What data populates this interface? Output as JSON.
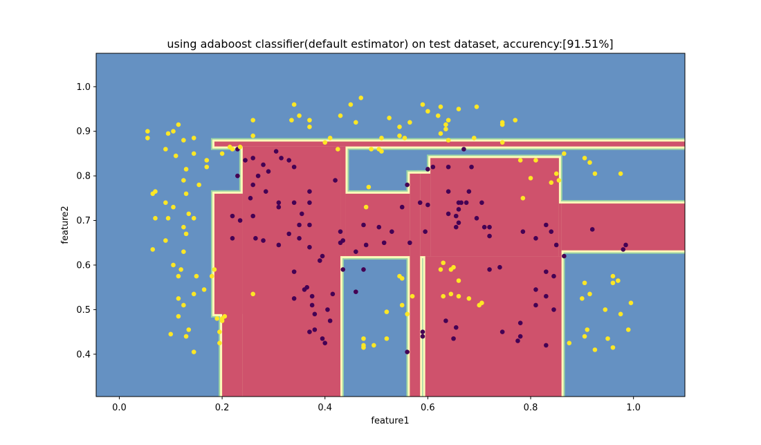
{
  "chart_data": {
    "type": "scatter",
    "title": "using adaboost classifier(default estimator) on test dataset, accurency:[91.51%]",
    "xlabel": "feature1",
    "ylabel": "feature2",
    "xlim": [
      -0.045,
      1.1
    ],
    "ylim": [
      0.305,
      1.075
    ],
    "xticks": [
      0.0,
      0.2,
      0.4,
      0.6,
      0.8,
      1.0
    ],
    "xtick_labels": [
      "0.0",
      "0.2",
      "0.4",
      "0.6",
      "0.8",
      "1.0"
    ],
    "yticks": [
      0.4,
      0.5,
      0.6,
      0.7,
      0.8,
      0.9,
      1.0
    ],
    "ytick_labels": [
      "0.4",
      "0.5",
      "0.6",
      "0.7",
      "0.8",
      "0.9",
      "1.0"
    ],
    "grid": false,
    "colors": {
      "background_region": "#6591c2",
      "predicted_region": "#cf526c",
      "boundary_outer": "#fdfab9",
      "boundary_inner": "#9ad3a4",
      "class_0_point": "#440154",
      "class_1_point": "#fde725"
    },
    "decision_regions": [
      {
        "x": [
          0.185,
          1.1
        ],
        "y": [
          0.866,
          0.877
        ]
      },
      {
        "x": [
          0.2,
          0.24
        ],
        "y": [
          0.305,
          0.76
        ]
      },
      {
        "x": [
          0.185,
          0.24
        ],
        "y": [
          0.49,
          0.76
        ]
      },
      {
        "x": [
          0.24,
          0.43
        ],
        "y": [
          0.305,
          0.866
        ]
      },
      {
        "x": [
          0.43,
          0.44
        ],
        "y": [
          0.62,
          0.866
        ]
      },
      {
        "x": [
          0.44,
          0.565
        ],
        "y": [
          0.62,
          0.76
        ]
      },
      {
        "x": [
          0.565,
          0.585
        ],
        "y": [
          0.305,
          0.805
        ]
      },
      {
        "x": [
          0.585,
          0.605
        ],
        "y": [
          0.62,
          0.805
        ]
      },
      {
        "x": [
          0.605,
          0.855
        ],
        "y": [
          0.62,
          0.84
        ]
      },
      {
        "x": [
          0.595,
          0.86
        ],
        "y": [
          0.305,
          0.62
        ]
      },
      {
        "x": [
          0.855,
          0.86
        ],
        "y": [
          0.62,
          0.738
        ]
      },
      {
        "x": [
          0.86,
          1.1
        ],
        "y": [
          0.633,
          0.738
        ]
      }
    ],
    "series": [
      {
        "points": [
          [
            0.23,
            0.86
          ],
          [
            0.26,
            0.84
          ],
          [
            0.305,
            0.855
          ],
          [
            0.315,
            0.84
          ],
          [
            0.33,
            0.835
          ],
          [
            0.245,
            0.835
          ],
          [
            0.28,
            0.825
          ],
          [
            0.34,
            0.82
          ],
          [
            0.23,
            0.8
          ],
          [
            0.27,
            0.8
          ],
          [
            0.29,
            0.81
          ],
          [
            0.42,
            0.79
          ],
          [
            0.26,
            0.78
          ],
          [
            0.37,
            0.765
          ],
          [
            0.285,
            0.765
          ],
          [
            0.255,
            0.75
          ],
          [
            0.37,
            0.74
          ],
          [
            0.31,
            0.74
          ],
          [
            0.34,
            0.74
          ],
          [
            0.31,
            0.73
          ],
          [
            0.22,
            0.71
          ],
          [
            0.235,
            0.7
          ],
          [
            0.26,
            0.71
          ],
          [
            0.355,
            0.715
          ],
          [
            0.37,
            0.69
          ],
          [
            0.35,
            0.69
          ],
          [
            0.33,
            0.67
          ],
          [
            0.265,
            0.66
          ],
          [
            0.28,
            0.655
          ],
          [
            0.31,
            0.645
          ],
          [
            0.22,
            0.66
          ],
          [
            0.35,
            0.66
          ],
          [
            0.37,
            0.64
          ],
          [
            0.39,
            0.61
          ],
          [
            0.395,
            0.62
          ],
          [
            0.34,
            0.585
          ],
          [
            0.36,
            0.545
          ],
          [
            0.365,
            0.55
          ],
          [
            0.375,
            0.53
          ],
          [
            0.415,
            0.535
          ],
          [
            0.34,
            0.525
          ],
          [
            0.375,
            0.51
          ],
          [
            0.38,
            0.49
          ],
          [
            0.405,
            0.5
          ],
          [
            0.41,
            0.475
          ],
          [
            0.37,
            0.45
          ],
          [
            0.38,
            0.455
          ],
          [
            0.395,
            0.435
          ],
          [
            0.4,
            0.425
          ],
          [
            0.43,
            0.675
          ],
          [
            0.43,
            0.65
          ],
          [
            0.435,
            0.655
          ],
          [
            0.475,
            0.69
          ],
          [
            0.48,
            0.645
          ],
          [
            0.505,
            0.685
          ],
          [
            0.515,
            0.65
          ],
          [
            0.53,
            0.675
          ],
          [
            0.46,
            0.63
          ],
          [
            0.435,
            0.59
          ],
          [
            0.475,
            0.59
          ],
          [
            0.46,
            0.54
          ],
          [
            0.56,
            0.405
          ],
          [
            0.56,
            0.78
          ],
          [
            0.55,
            0.73
          ],
          [
            0.585,
            0.74
          ],
          [
            0.6,
            0.735
          ],
          [
            0.595,
            0.675
          ],
          [
            0.565,
            0.65
          ],
          [
            0.6,
            0.815
          ],
          [
            0.61,
            0.82
          ],
          [
            0.64,
            0.82
          ],
          [
            0.685,
            0.82
          ],
          [
            0.67,
            0.86
          ],
          [
            0.64,
            0.765
          ],
          [
            0.68,
            0.765
          ],
          [
            0.66,
            0.74
          ],
          [
            0.665,
            0.74
          ],
          [
            0.675,
            0.74
          ],
          [
            0.66,
            0.725
          ],
          [
            0.705,
            0.74
          ],
          [
            0.64,
            0.715
          ],
          [
            0.655,
            0.71
          ],
          [
            0.66,
            0.695
          ],
          [
            0.655,
            0.685
          ],
          [
            0.695,
            0.705
          ],
          [
            0.71,
            0.685
          ],
          [
            0.72,
            0.685
          ],
          [
            0.72,
            0.665
          ],
          [
            0.72,
            0.59
          ],
          [
            0.74,
            0.595
          ],
          [
            0.635,
            0.475
          ],
          [
            0.655,
            0.46
          ],
          [
            0.59,
            0.45
          ],
          [
            0.59,
            0.44
          ],
          [
            0.65,
            0.435
          ],
          [
            0.745,
            0.45
          ],
          [
            0.785,
            0.675
          ],
          [
            0.81,
            0.66
          ],
          [
            0.83,
            0.69
          ],
          [
            0.84,
            0.675
          ],
          [
            0.85,
            0.645
          ],
          [
            0.83,
            0.585
          ],
          [
            0.845,
            0.575
          ],
          [
            0.81,
            0.545
          ],
          [
            0.83,
            0.53
          ],
          [
            0.81,
            0.51
          ],
          [
            0.845,
            0.5
          ],
          [
            0.78,
            0.47
          ],
          [
            0.78,
            0.44
          ],
          [
            0.775,
            0.43
          ],
          [
            0.83,
            0.42
          ],
          [
            0.865,
            0.62
          ],
          [
            0.92,
            0.68
          ],
          [
            0.985,
            0.645
          ],
          [
            0.98,
            0.635
          ]
        ]
      },
      {
        "points": [
          [
            0.055,
            0.885
          ],
          [
            0.055,
            0.9
          ],
          [
            0.095,
            0.895
          ],
          [
            0.105,
            0.9
          ],
          [
            0.115,
            0.915
          ],
          [
            0.125,
            0.88
          ],
          [
            0.09,
            0.86
          ],
          [
            0.11,
            0.845
          ],
          [
            0.145,
            0.885
          ],
          [
            0.145,
            0.85
          ],
          [
            0.17,
            0.835
          ],
          [
            0.17,
            0.82
          ],
          [
            0.13,
            0.815
          ],
          [
            0.125,
            0.79
          ],
          [
            0.155,
            0.78
          ],
          [
            0.13,
            0.76
          ],
          [
            0.065,
            0.76
          ],
          [
            0.07,
            0.765
          ],
          [
            0.09,
            0.74
          ],
          [
            0.105,
            0.73
          ],
          [
            0.095,
            0.705
          ],
          [
            0.07,
            0.705
          ],
          [
            0.135,
            0.715
          ],
          [
            0.145,
            0.705
          ],
          [
            0.125,
            0.685
          ],
          [
            0.13,
            0.67
          ],
          [
            0.09,
            0.655
          ],
          [
            0.065,
            0.635
          ],
          [
            0.125,
            0.63
          ],
          [
            0.105,
            0.6
          ],
          [
            0.12,
            0.59
          ],
          [
            0.115,
            0.575
          ],
          [
            0.15,
            0.575
          ],
          [
            0.165,
            0.545
          ],
          [
            0.18,
            0.575
          ],
          [
            0.145,
            0.535
          ],
          [
            0.115,
            0.525
          ],
          [
            0.125,
            0.51
          ],
          [
            0.115,
            0.485
          ],
          [
            0.135,
            0.455
          ],
          [
            0.1,
            0.445
          ],
          [
            0.13,
            0.44
          ],
          [
            0.145,
            0.405
          ],
          [
            0.185,
            0.59
          ],
          [
            0.19,
            0.48
          ],
          [
            0.2,
            0.48
          ],
          [
            0.2,
            0.475
          ],
          [
            0.205,
            0.485
          ],
          [
            0.195,
            0.45
          ],
          [
            0.195,
            0.425
          ],
          [
            0.26,
            0.535
          ],
          [
            0.2,
            0.85
          ],
          [
            0.215,
            0.865
          ],
          [
            0.22,
            0.86
          ],
          [
            0.235,
            0.865
          ],
          [
            0.26,
            0.925
          ],
          [
            0.26,
            0.89
          ],
          [
            0.335,
            0.925
          ],
          [
            0.34,
            0.96
          ],
          [
            0.35,
            0.935
          ],
          [
            0.37,
            0.925
          ],
          [
            0.37,
            0.91
          ],
          [
            0.4,
            0.875
          ],
          [
            0.41,
            0.885
          ],
          [
            0.425,
            0.86
          ],
          [
            0.43,
            0.935
          ],
          [
            0.45,
            0.96
          ],
          [
            0.46,
            0.92
          ],
          [
            0.47,
            0.975
          ],
          [
            0.49,
            0.86
          ],
          [
            0.505,
            0.86
          ],
          [
            0.51,
            0.855
          ],
          [
            0.51,
            0.885
          ],
          [
            0.525,
            0.93
          ],
          [
            0.545,
            0.91
          ],
          [
            0.545,
            0.89
          ],
          [
            0.555,
            0.885
          ],
          [
            0.565,
            0.92
          ],
          [
            0.59,
            0.96
          ],
          [
            0.6,
            0.945
          ],
          [
            0.62,
            0.935
          ],
          [
            0.625,
            0.955
          ],
          [
            0.635,
            0.915
          ],
          [
            0.64,
            0.925
          ],
          [
            0.635,
            0.905
          ],
          [
            0.625,
            0.895
          ],
          [
            0.64,
            0.88
          ],
          [
            0.66,
            0.95
          ],
          [
            0.69,
            0.885
          ],
          [
            0.695,
            0.955
          ],
          [
            0.745,
            0.915
          ],
          [
            0.745,
            0.92
          ],
          [
            0.77,
            0.925
          ],
          [
            0.745,
            0.875
          ],
          [
            0.485,
            0.775
          ],
          [
            0.48,
            0.73
          ],
          [
            0.545,
            0.575
          ],
          [
            0.55,
            0.57
          ],
          [
            0.57,
            0.53
          ],
          [
            0.55,
            0.51
          ],
          [
            0.52,
            0.495
          ],
          [
            0.56,
            0.49
          ],
          [
            0.475,
            0.435
          ],
          [
            0.475,
            0.42
          ],
          [
            0.475,
            0.415
          ],
          [
            0.495,
            0.42
          ],
          [
            0.52,
            0.435
          ],
          [
            0.63,
            0.605
          ],
          [
            0.625,
            0.59
          ],
          [
            0.645,
            0.59
          ],
          [
            0.65,
            0.595
          ],
          [
            0.645,
            0.535
          ],
          [
            0.63,
            0.53
          ],
          [
            0.66,
            0.53
          ],
          [
            0.66,
            0.565
          ],
          [
            0.68,
            0.525
          ],
          [
            0.7,
            0.51
          ],
          [
            0.705,
            0.515
          ],
          [
            0.78,
            0.835
          ],
          [
            0.81,
            0.835
          ],
          [
            0.8,
            0.795
          ],
          [
            0.84,
            0.785
          ],
          [
            0.85,
            0.805
          ],
          [
            0.855,
            0.79
          ],
          [
            0.865,
            0.85
          ],
          [
            0.785,
            0.75
          ],
          [
            0.905,
            0.84
          ],
          [
            0.915,
            0.83
          ],
          [
            0.925,
            0.805
          ],
          [
            0.975,
            0.805
          ],
          [
            0.905,
            0.56
          ],
          [
            0.915,
            0.535
          ],
          [
            0.9,
            0.525
          ],
          [
            0.96,
            0.575
          ],
          [
            0.96,
            0.56
          ],
          [
            0.97,
            0.565
          ],
          [
            0.945,
            0.5
          ],
          [
            0.975,
            0.49
          ],
          [
            0.995,
            0.515
          ],
          [
            0.905,
            0.44
          ],
          [
            0.91,
            0.455
          ],
          [
            0.95,
            0.435
          ],
          [
            0.925,
            0.41
          ],
          [
            0.96,
            0.415
          ],
          [
            0.99,
            0.455
          ],
          [
            0.875,
            0.425
          ]
        ]
      }
    ]
  }
}
